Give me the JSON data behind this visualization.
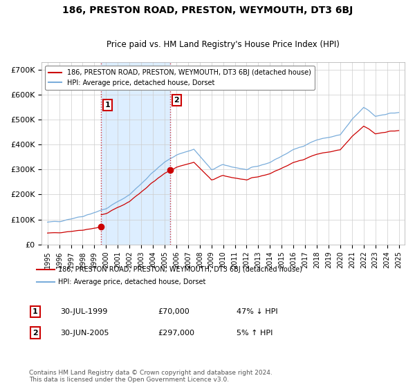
{
  "title": "186, PRESTON ROAD, PRESTON, WEYMOUTH, DT3 6BJ",
  "subtitle": "Price paid vs. HM Land Registry's House Price Index (HPI)",
  "legend_line1": "186, PRESTON ROAD, PRESTON, WEYMOUTH, DT3 6BJ (detached house)",
  "legend_line2": "HPI: Average price, detached house, Dorset",
  "transaction1_label": "1",
  "transaction1_date": "30-JUL-1999",
  "transaction1_price": "£70,000",
  "transaction1_hpi": "47% ↓ HPI",
  "transaction1_year": 1999.58,
  "transaction1_value": 70000,
  "transaction2_label": "2",
  "transaction2_date": "30-JUN-2005",
  "transaction2_price": "£297,000",
  "transaction2_hpi": "5% ↑ HPI",
  "transaction2_year": 2005.5,
  "transaction2_value": 297000,
  "footer": "Contains HM Land Registry data © Crown copyright and database right 2024.\nThis data is licensed under the Open Government Licence v3.0.",
  "ylim": [
    0,
    730000
  ],
  "xlim_start": 1994.5,
  "xlim_end": 2025.5,
  "red_color": "#cc0000",
  "blue_color": "#7aaddb",
  "shade_color": "#ddeeff",
  "background_color": "#ffffff",
  "grid_color": "#cccccc"
}
